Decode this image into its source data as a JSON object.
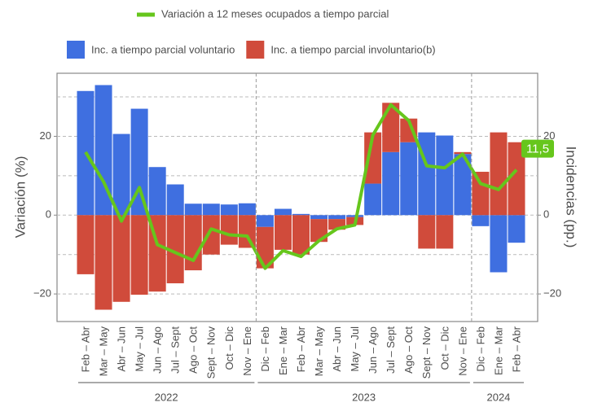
{
  "chart_data": {
    "type": "stacked_bar_line",
    "legend_line": "Variación a 12 meses ocupados a tiempo parcial",
    "y_title": "Variación (%)",
    "y2_title": "Incidencias (pp.)",
    "categories": [
      "Feb – Abr",
      "Mar – May",
      "Abr – Jun",
      "May – Jul",
      "Jun – Ago",
      "Jul – Sept",
      "Ago – Oct",
      "Sept – Nov",
      "Oct – Dic",
      "Nov – Ene",
      "Dic – Feb",
      "Ene – Mar",
      "Feb – Abr",
      "Mar – May",
      "Abr – Jun",
      "May – Jul",
      "Jun – Ago",
      "Jul – Sept",
      "Ago – Oct",
      "Sept – Nov",
      "Oct – Dic",
      "Nov – Ene",
      "Dic – Feb",
      "Ene – Mar",
      "Feb – Abr"
    ],
    "year_groups": [
      {
        "label": "2022",
        "count": 10
      },
      {
        "label": "2023",
        "count": 12
      },
      {
        "label": "2024",
        "count": 3
      }
    ],
    "series": [
      {
        "name": "Inc. a tiempo parcial voluntario",
        "color": "#3f6fe0",
        "kind": "bar",
        "values": [
          31.5,
          33,
          20.6,
          27,
          12.2,
          7.8,
          2.9,
          2.9,
          2.7,
          3,
          -3,
          1.6,
          0.3,
          -1,
          -1,
          -0.5,
          8,
          16,
          18.5,
          21,
          20.2,
          15.5,
          -2.8,
          -14.5,
          -7
        ]
      },
      {
        "name": "Inc. a tiempo parcial involuntario(b)",
        "color": "#d04b3b",
        "kind": "bar",
        "values": [
          -15,
          -24,
          -22,
          -20.2,
          -19.4,
          -17.3,
          -14,
          -10,
          -7.5,
          -8.3,
          -10.5,
          -8.8,
          -10,
          -5.8,
          -2.7,
          -2,
          13,
          12.5,
          6,
          -8.5,
          -8.5,
          0.5,
          11,
          21,
          18.5
        ]
      },
      {
        "name": "Variación a 12 meses ocupados a tiempo parcial",
        "color": "#66c61c",
        "kind": "line",
        "values": [
          16,
          8.5,
          -1.5,
          7,
          -7.5,
          -9.5,
          -11.5,
          -3.5,
          -5,
          -5.3,
          -13.5,
          -9,
          -10.5,
          -6.5,
          -3.5,
          -2.5,
          20.3,
          28,
          24,
          12.5,
          12,
          15.5,
          8,
          6.5,
          11.5
        ],
        "value_labels": [
          null,
          null,
          null,
          null,
          null,
          null,
          null,
          null,
          null,
          null,
          null,
          null,
          null,
          null,
          null,
          null,
          null,
          null,
          null,
          null,
          null,
          null,
          null,
          null,
          "11,5"
        ]
      }
    ],
    "ylim": [
      -27,
      36
    ],
    "yticks": [
      {
        "value": -20,
        "label": "−20"
      },
      0,
      20
    ],
    "y2lim": [
      -27,
      36
    ],
    "y2ticks": [
      {
        "value": -20,
        "label": "−20"
      },
      0,
      20
    ],
    "minor_gridlines": [
      -10,
      10,
      30
    ],
    "grid": true
  }
}
